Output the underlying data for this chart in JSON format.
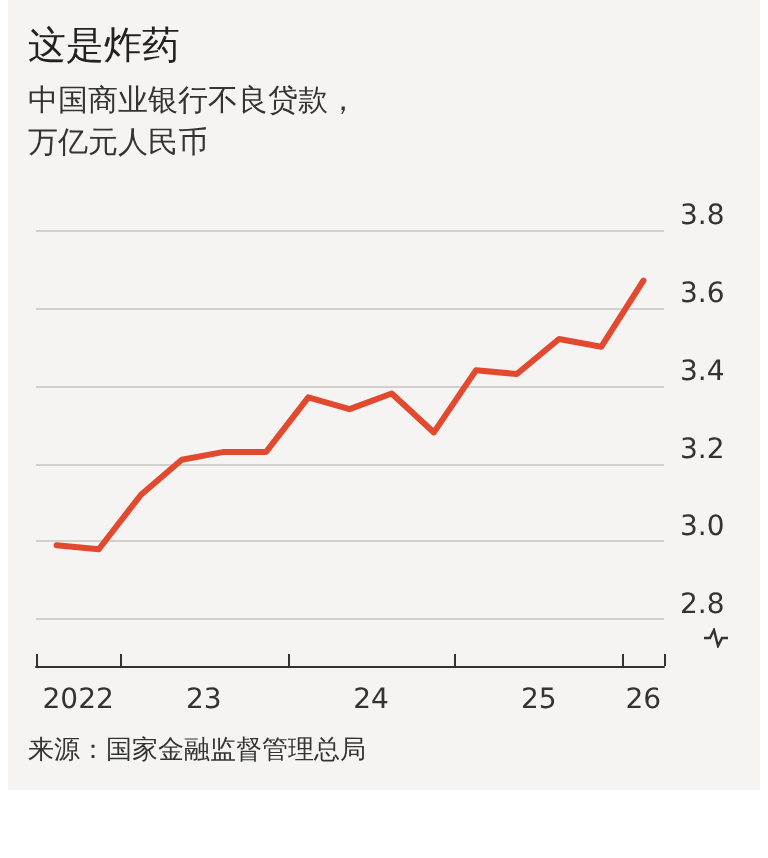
{
  "chart_data": {
    "type": "line",
    "title": "这是炸药",
    "subtitle": "中国商业银行不良贷款，万亿元人民币",
    "annotations": [
      "来源：国家金融监督管理总局"
    ],
    "x": [
      "2022-08-15",
      "2022-11-15",
      "2023-02-15",
      "2023-05-15",
      "2023-08-15",
      "2023-11-15",
      "2024-02-15",
      "2024-05-15",
      "2024-08-15",
      "2024-11-15",
      "2025-02-15",
      "2025-05-15",
      "2025-08-15",
      "2025-11-15",
      "2026-02-15"
    ],
    "series": [
      {
        "color": "#e3492f",
        "values": [
          2.99,
          2.98,
          3.12,
          3.21,
          3.23,
          3.23,
          3.37,
          3.34,
          3.38,
          3.28,
          3.44,
          3.43,
          3.52,
          3.5,
          3.67
        ]
      }
    ],
    "xlim": [
      "2022-07-01",
      "2026-04-01"
    ],
    "xticks": [
      {
        "value": "2022-10-01",
        "label": "2022"
      },
      {
        "value": "2023-01-01",
        "label": null
      },
      {
        "value": "2023-07-02",
        "label": "23"
      },
      {
        "value": "2024-01-01",
        "label": null
      },
      {
        "value": "2024-07-01",
        "label": "24"
      },
      {
        "value": "2025-01-01",
        "label": null
      },
      {
        "value": "2025-07-02",
        "label": "25"
      },
      {
        "value": "2026-01-01",
        "label": null
      },
      {
        "value": "2026-02-15",
        "label": "26"
      }
    ],
    "ylim": [
      2.68,
      3.8
    ],
    "yticks": [
      2.8,
      {
        "value": 3.0,
        "label": "3.0"
      },
      3.2,
      3.4,
      3.6,
      3.8
    ],
    "grid": "y",
    "marker": "none",
    "line_style": "solid"
  }
}
